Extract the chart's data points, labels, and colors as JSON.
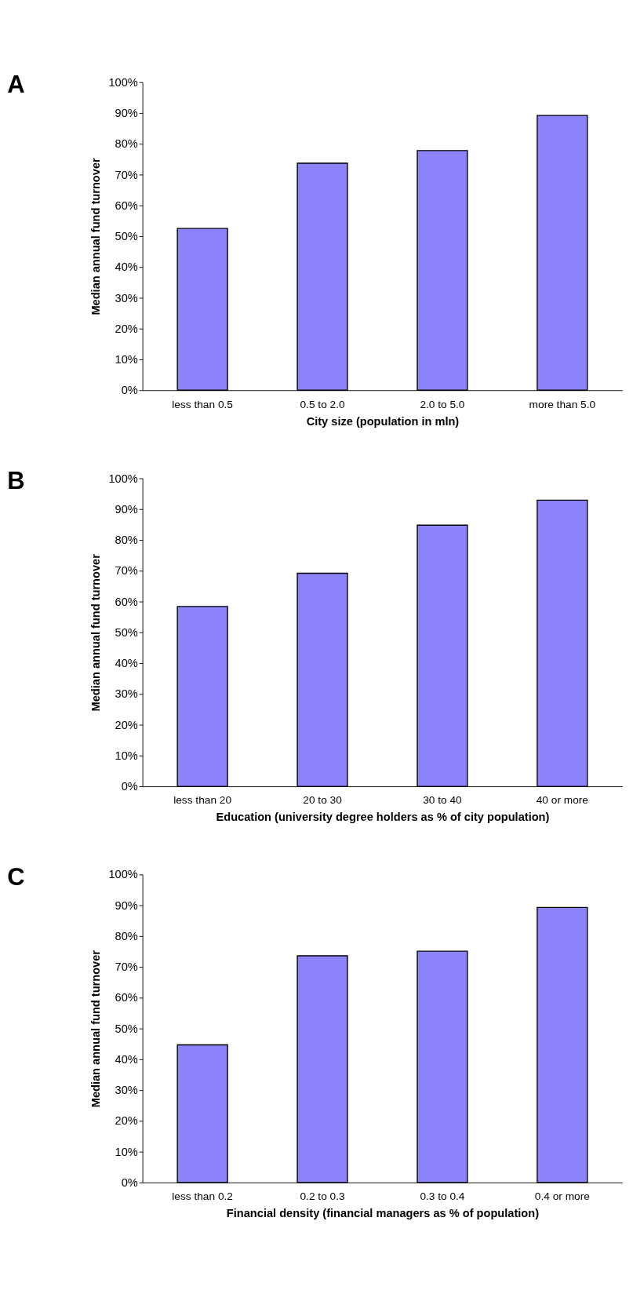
{
  "chart_data": [
    {
      "type": "bar",
      "title": "A",
      "xlabel": "City size (population in mln)",
      "ylabel": "Median annual fund turnover",
      "categories": [
        "less than 0.5",
        "0.5 to 2.0",
        "2.0 to 5.0",
        "more than 5.0"
      ],
      "values": [
        52.5,
        73.7,
        77.8,
        89.2
      ],
      "color": "#8c82fa",
      "ylim": [
        0,
        100
      ],
      "yticks": [
        {
          "value": 0,
          "label": "0%"
        },
        {
          "value": 10,
          "label": "10%"
        },
        {
          "value": 20,
          "label": "20%"
        },
        {
          "value": 30,
          "label": "30%"
        },
        {
          "value": 40,
          "label": "40%"
        },
        {
          "value": 50,
          "label": "50%"
        },
        {
          "value": 60,
          "label": "60%"
        },
        {
          "value": 70,
          "label": "70%"
        },
        {
          "value": 80,
          "label": "80%"
        },
        {
          "value": 90,
          "label": "90%"
        },
        {
          "value": 100,
          "label": "100%"
        }
      ],
      "grid": false
    },
    {
      "type": "bar",
      "title": "B",
      "xlabel": "Education (university degree holders as % of city population)",
      "ylabel": "Median annual fund turnover",
      "categories": [
        "less than 20",
        "20 to 30",
        "30 to 40",
        "40 or more"
      ],
      "values": [
        58.4,
        69.2,
        84.8,
        92.9
      ],
      "color": "#8c82fa",
      "ylim": [
        0,
        100
      ],
      "yticks": [
        {
          "value": 0,
          "label": "0%"
        },
        {
          "value": 10,
          "label": "10%"
        },
        {
          "value": 20,
          "label": "20%"
        },
        {
          "value": 30,
          "label": "30%"
        },
        {
          "value": 40,
          "label": "40%"
        },
        {
          "value": 50,
          "label": "50%"
        },
        {
          "value": 60,
          "label": "60%"
        },
        {
          "value": 70,
          "label": "70%"
        },
        {
          "value": 80,
          "label": "80%"
        },
        {
          "value": 90,
          "label": "90%"
        },
        {
          "value": 100,
          "label": "100%"
        }
      ],
      "grid": false
    },
    {
      "type": "bar",
      "title": "C",
      "xlabel": "Financial density (financial managers as % of population)",
      "ylabel": "Median annual fund turnover",
      "categories": [
        "less than 0.2",
        "0.2 to 0.3",
        "0.3 to 0.4",
        "0.4 or more"
      ],
      "values": [
        44.7,
        73.6,
        75.1,
        89.3
      ],
      "color": "#8c82fa",
      "ylim": [
        0,
        100
      ],
      "yticks": [
        {
          "value": 0,
          "label": "0%"
        },
        {
          "value": 10,
          "label": "10%"
        },
        {
          "value": 20,
          "label": "20%"
        },
        {
          "value": 30,
          "label": "30%"
        },
        {
          "value": 40,
          "label": "40%"
        },
        {
          "value": 50,
          "label": "50%"
        },
        {
          "value": 60,
          "label": "60%"
        },
        {
          "value": 70,
          "label": "70%"
        },
        {
          "value": 80,
          "label": "80%"
        },
        {
          "value": 90,
          "label": "90%"
        },
        {
          "value": 100,
          "label": "100%"
        }
      ],
      "grid": false
    }
  ]
}
